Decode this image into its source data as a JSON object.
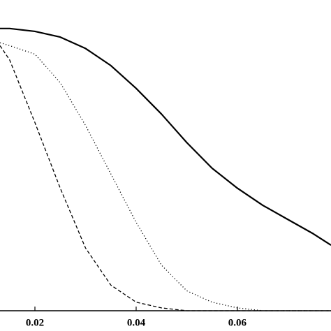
{
  "chart_data": {
    "type": "line",
    "x": [
      0.0131,
      0.015,
      0.02,
      0.025,
      0.03,
      0.035,
      0.04,
      0.045,
      0.05,
      0.055,
      0.06,
      0.065,
      0.07,
      0.075,
      0.0785
    ],
    "series": [
      {
        "color": "#000000",
        "dash": "solid",
        "values": [
          0.99,
          0.99,
          0.98,
          0.96,
          0.92,
          0.86,
          0.78,
          0.69,
          0.59,
          0.5,
          0.43,
          0.37,
          0.32,
          0.27,
          0.23
        ]
      },
      {
        "color": "#000000",
        "dash": "dotted",
        "values": [
          0.94,
          0.93,
          0.9,
          0.8,
          0.65,
          0.48,
          0.31,
          0.16,
          0.07,
          0.03,
          0.01,
          0,
          0,
          0,
          0
        ]
      },
      {
        "color": "#000000",
        "dash": "dashed",
        "values": [
          0.93,
          0.88,
          0.66,
          0.43,
          0.22,
          0.09,
          0.03,
          0.01,
          0,
          0,
          0,
          0,
          0,
          0,
          0
        ]
      }
    ],
    "xlim": [
      0.0131,
      0.0785
    ],
    "ylim": [
      0,
      1.09
    ],
    "xticks": [
      0.02,
      0.04,
      0.06
    ]
  }
}
